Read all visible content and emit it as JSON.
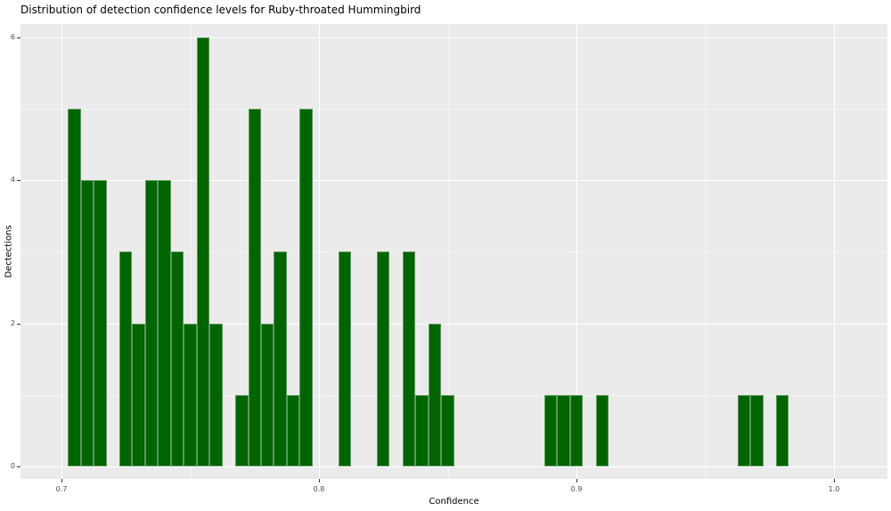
{
  "title": "Distribution of detection confidence levels for Ruby-throated Hummingbird",
  "chart_data": {
    "type": "bar",
    "subtype": "histogram",
    "title": "Distribution of detection confidence levels for Ruby-throated Hummingbird",
    "xlabel": "Confidence",
    "ylabel": "Dectections",
    "x_ticks": [
      0.7,
      0.8,
      0.9,
      1.0
    ],
    "x_tick_labels": [
      "0.7",
      "0.8",
      "0.9",
      "1.0"
    ],
    "y_ticks": [
      0,
      2,
      4,
      6
    ],
    "y_tick_labels": [
      "0",
      "2",
      "4",
      "6"
    ],
    "x_minor_ticks": [
      0.75,
      0.85,
      0.95
    ],
    "y_minor_ticks": [
      1,
      3,
      5
    ],
    "xlim": [
      0.685,
      1.021
    ],
    "ylim": [
      -0.18,
      6.19
    ],
    "grid": "major-and-minor",
    "legend": "none",
    "binwidth": 0.005,
    "bin_centers": [
      0.705,
      0.71,
      0.715,
      0.72,
      0.725,
      0.73,
      0.735,
      0.74,
      0.745,
      0.75,
      0.755,
      0.76,
      0.765,
      0.77,
      0.775,
      0.78,
      0.785,
      0.79,
      0.795,
      0.8,
      0.805,
      0.81,
      0.815,
      0.82,
      0.825,
      0.83,
      0.835,
      0.84,
      0.845,
      0.85,
      0.855,
      0.86,
      0.865,
      0.87,
      0.875,
      0.88,
      0.885,
      0.89,
      0.895,
      0.9,
      0.905,
      0.91,
      0.915,
      0.92,
      0.925,
      0.93,
      0.935,
      0.94,
      0.945,
      0.95,
      0.955,
      0.96,
      0.965,
      0.97,
      0.975,
      0.98
    ],
    "counts": [
      5,
      4,
      4,
      0,
      3,
      2,
      4,
      4,
      3,
      2,
      6,
      2,
      0,
      1,
      5,
      2,
      3,
      1,
      5,
      0,
      0,
      3,
      0,
      0,
      3,
      0,
      3,
      1,
      2,
      1,
      0,
      0,
      0,
      0,
      0,
      0,
      0,
      1,
      1,
      1,
      0,
      1,
      0,
      0,
      0,
      0,
      0,
      0,
      0,
      0,
      0,
      0,
      1,
      1,
      0,
      1
    ],
    "colors": {
      "bar_fill": "#006400",
      "bar_edge": "#5a9a5a",
      "panel_bg": "#ebebeb",
      "grid_major": "#ffffff",
      "grid_minor": "#f5f5f5",
      "tick_mark": "#333333",
      "tick_label": "#4d4d4d",
      "text": "#000000",
      "page_bg": "#ffffff"
    }
  }
}
